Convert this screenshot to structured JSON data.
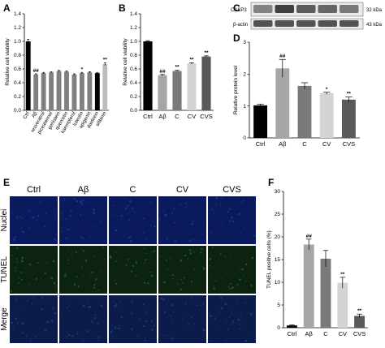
{
  "figure": {
    "panel_letters": [
      "A",
      "B",
      "C",
      "D",
      "E",
      "F"
    ]
  },
  "chart_data": [
    {
      "panel": "A",
      "type": "bar",
      "categories": [
        "Ctrl",
        "Aβ",
        "resveratrol",
        "piceatannol",
        "genistein",
        "quercetin",
        "kaempferol",
        "luteolin",
        "apigenin",
        "daidzein",
        "silibinin"
      ],
      "values": [
        1.0,
        0.52,
        0.54,
        0.55,
        0.57,
        0.56,
        0.52,
        0.54,
        0.55,
        0.54,
        0.67
      ],
      "errors": [
        0.03,
        0.01,
        0.01,
        0.01,
        0.01,
        0.01,
        0.01,
        0.01,
        0.01,
        0.01,
        0.02
      ],
      "significance": [
        "",
        "##",
        "",
        "",
        "",
        "",
        "",
        "*",
        "",
        "",
        "**"
      ],
      "bar_colors": [
        "#000000",
        "#808080",
        "#808080",
        "#808080",
        "#808080",
        "#808080",
        "#808080",
        "#808080",
        "#808080",
        "#000000",
        "#bdbdbd"
      ],
      "ylabel": "Relative cell viability",
      "ylim": [
        0,
        1.4
      ],
      "yticks": [
        "0.0",
        "0.2",
        "0.4",
        "0.6",
        "0.8",
        "1.0",
        "1.2",
        "1.4"
      ]
    },
    {
      "panel": "B",
      "type": "bar",
      "categories": [
        "Ctrl",
        "Aβ",
        "C",
        "CV",
        "CVS"
      ],
      "values": [
        1.0,
        0.51,
        0.57,
        0.68,
        0.78
      ],
      "errors": [
        0.01,
        0.01,
        0.01,
        0.01,
        0.01
      ],
      "significance": [
        "",
        "##",
        "**",
        "**",
        "**"
      ],
      "bar_colors": [
        "#000000",
        "#a6a6a6",
        "#7a7a7a",
        "#d4d4d4",
        "#595959"
      ],
      "ylabel": "Relative cell viability",
      "ylim": [
        0,
        1.4
      ],
      "yticks": [
        "0.0",
        "0.2",
        "0.4",
        "0.6",
        "0.8",
        "1.0",
        "1.2",
        "1.4"
      ]
    },
    {
      "panel": "D",
      "type": "bar",
      "categories": [
        "Ctrl",
        "Aβ",
        "C",
        "CV",
        "CVS"
      ],
      "values": [
        1.02,
        2.18,
        1.63,
        1.4,
        1.2
      ],
      "errors": [
        0.04,
        0.28,
        0.1,
        0.03,
        0.08
      ],
      "significance": [
        "",
        "##",
        "",
        "*",
        "**"
      ],
      "bar_colors": [
        "#000000",
        "#a6a6a6",
        "#7a7a7a",
        "#d4d4d4",
        "#595959"
      ],
      "ylabel": "Relative protein level",
      "ylim": [
        0,
        3
      ],
      "yticks": [
        "0",
        "1",
        "2",
        "3"
      ]
    },
    {
      "panel": "F",
      "type": "bar",
      "categories": [
        "Ctrl",
        "Aβ",
        "C",
        "CV",
        "CVS"
      ],
      "values": [
        0.5,
        18.3,
        15.2,
        9.9,
        2.6
      ],
      "errors": [
        0.1,
        1.2,
        1.8,
        1.2,
        0.4
      ],
      "significance": [
        "",
        "##",
        "",
        "**",
        "**"
      ],
      "bar_colors": [
        "#000000",
        "#a6a6a6",
        "#7a7a7a",
        "#d4d4d4",
        "#595959"
      ],
      "ylabel": "TUNEL positive cells (%)",
      "ylim": [
        0,
        30
      ],
      "yticks": [
        "0",
        "5",
        "10",
        "15",
        "20",
        "25",
        "30"
      ]
    }
  ],
  "blot": {
    "panel": "C",
    "lanes": 5,
    "bands": [
      {
        "protein": "CASP3",
        "size_label": "32 kDa",
        "intensity": [
          0.55,
          0.9,
          0.75,
          0.7,
          0.6
        ]
      },
      {
        "protein": "β-actin",
        "size_label": "43 kDa",
        "intensity": [
          0.8,
          0.8,
          0.8,
          0.8,
          0.8
        ]
      }
    ]
  },
  "micrographs": {
    "panel": "E",
    "columns": [
      "Ctrl",
      "Aβ",
      "C",
      "CV",
      "CVS"
    ],
    "rows": [
      "Nuclei",
      "TUNEL",
      "Merge"
    ],
    "row_colors": [
      "#0a1a5c",
      "#0b2310",
      "#0c1c4a"
    ]
  }
}
